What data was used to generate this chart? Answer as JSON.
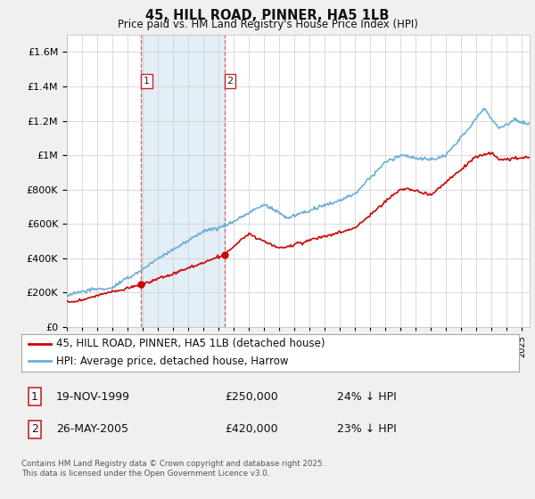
{
  "title": "45, HILL ROAD, PINNER, HA5 1LB",
  "subtitle": "Price paid vs. HM Land Registry's House Price Index (HPI)",
  "ylim": [
    0,
    1700000
  ],
  "xlim_start": 1995.0,
  "xlim_end": 2025.5,
  "hpi_color": "#6baed6",
  "price_color": "#cc0000",
  "sale1_date": 1999.89,
  "sale1_price": 250000,
  "sale2_date": 2005.39,
  "sale2_price": 420000,
  "legend_line1": "45, HILL ROAD, PINNER, HA5 1LB (detached house)",
  "legend_line2": "HPI: Average price, detached house, Harrow",
  "table_row1": [
    "1",
    "19-NOV-1999",
    "£250,000",
    "24% ↓ HPI"
  ],
  "table_row2": [
    "2",
    "26-MAY-2005",
    "£420,000",
    "23% ↓ HPI"
  ],
  "footnote": "Contains HM Land Registry data © Crown copyright and database right 2025.\nThis data is licensed under the Open Government Licence v3.0.",
  "background_color": "#f0f0f0",
  "plot_bg_color": "#ffffff",
  "grid_color": "#cccccc",
  "shaded_region_color": "#cce0f0"
}
